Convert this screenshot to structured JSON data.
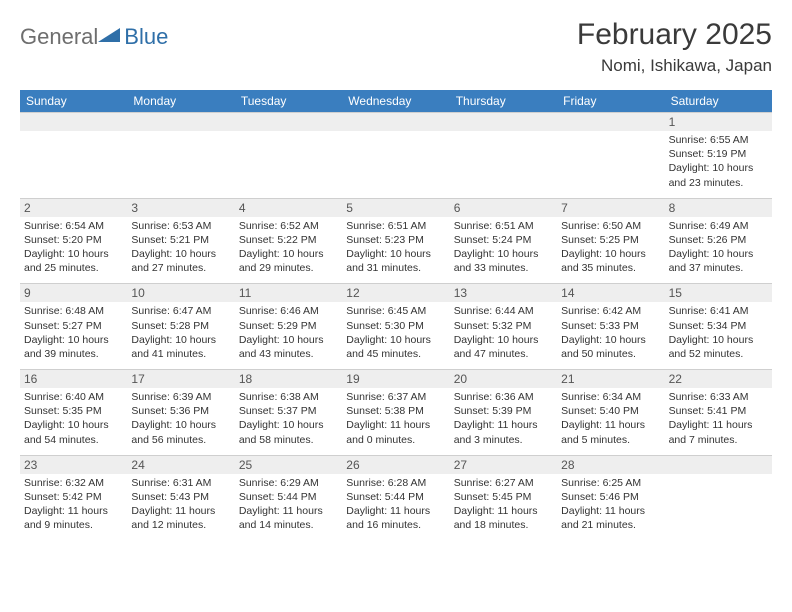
{
  "logo": {
    "text_general": "General",
    "text_blue": "Blue"
  },
  "header": {
    "month_title": "February 2025",
    "location": "Nomi, Ishikawa, Japan"
  },
  "colors": {
    "header_bg": "#3a7ebf",
    "strip_bg": "#eeeeee",
    "border": "#cfcfcf",
    "logo_gray": "#6e6e6e",
    "logo_blue": "#2f6fa8"
  },
  "weekdays": [
    "Sunday",
    "Monday",
    "Tuesday",
    "Wednesday",
    "Thursday",
    "Friday",
    "Saturday"
  ],
  "weeks": [
    [
      {
        "blank": true
      },
      {
        "blank": true
      },
      {
        "blank": true
      },
      {
        "blank": true
      },
      {
        "blank": true
      },
      {
        "blank": true
      },
      {
        "num": "1",
        "sunrise": "Sunrise: 6:55 AM",
        "sunset": "Sunset: 5:19 PM",
        "daylight": "Daylight: 10 hours and 23 minutes."
      }
    ],
    [
      {
        "num": "2",
        "sunrise": "Sunrise: 6:54 AM",
        "sunset": "Sunset: 5:20 PM",
        "daylight": "Daylight: 10 hours and 25 minutes."
      },
      {
        "num": "3",
        "sunrise": "Sunrise: 6:53 AM",
        "sunset": "Sunset: 5:21 PM",
        "daylight": "Daylight: 10 hours and 27 minutes."
      },
      {
        "num": "4",
        "sunrise": "Sunrise: 6:52 AM",
        "sunset": "Sunset: 5:22 PM",
        "daylight": "Daylight: 10 hours and 29 minutes."
      },
      {
        "num": "5",
        "sunrise": "Sunrise: 6:51 AM",
        "sunset": "Sunset: 5:23 PM",
        "daylight": "Daylight: 10 hours and 31 minutes."
      },
      {
        "num": "6",
        "sunrise": "Sunrise: 6:51 AM",
        "sunset": "Sunset: 5:24 PM",
        "daylight": "Daylight: 10 hours and 33 minutes."
      },
      {
        "num": "7",
        "sunrise": "Sunrise: 6:50 AM",
        "sunset": "Sunset: 5:25 PM",
        "daylight": "Daylight: 10 hours and 35 minutes."
      },
      {
        "num": "8",
        "sunrise": "Sunrise: 6:49 AM",
        "sunset": "Sunset: 5:26 PM",
        "daylight": "Daylight: 10 hours and 37 minutes."
      }
    ],
    [
      {
        "num": "9",
        "sunrise": "Sunrise: 6:48 AM",
        "sunset": "Sunset: 5:27 PM",
        "daylight": "Daylight: 10 hours and 39 minutes."
      },
      {
        "num": "10",
        "sunrise": "Sunrise: 6:47 AM",
        "sunset": "Sunset: 5:28 PM",
        "daylight": "Daylight: 10 hours and 41 minutes."
      },
      {
        "num": "11",
        "sunrise": "Sunrise: 6:46 AM",
        "sunset": "Sunset: 5:29 PM",
        "daylight": "Daylight: 10 hours and 43 minutes."
      },
      {
        "num": "12",
        "sunrise": "Sunrise: 6:45 AM",
        "sunset": "Sunset: 5:30 PM",
        "daylight": "Daylight: 10 hours and 45 minutes."
      },
      {
        "num": "13",
        "sunrise": "Sunrise: 6:44 AM",
        "sunset": "Sunset: 5:32 PM",
        "daylight": "Daylight: 10 hours and 47 minutes."
      },
      {
        "num": "14",
        "sunrise": "Sunrise: 6:42 AM",
        "sunset": "Sunset: 5:33 PM",
        "daylight": "Daylight: 10 hours and 50 minutes."
      },
      {
        "num": "15",
        "sunrise": "Sunrise: 6:41 AM",
        "sunset": "Sunset: 5:34 PM",
        "daylight": "Daylight: 10 hours and 52 minutes."
      }
    ],
    [
      {
        "num": "16",
        "sunrise": "Sunrise: 6:40 AM",
        "sunset": "Sunset: 5:35 PM",
        "daylight": "Daylight: 10 hours and 54 minutes."
      },
      {
        "num": "17",
        "sunrise": "Sunrise: 6:39 AM",
        "sunset": "Sunset: 5:36 PM",
        "daylight": "Daylight: 10 hours and 56 minutes."
      },
      {
        "num": "18",
        "sunrise": "Sunrise: 6:38 AM",
        "sunset": "Sunset: 5:37 PM",
        "daylight": "Daylight: 10 hours and 58 minutes."
      },
      {
        "num": "19",
        "sunrise": "Sunrise: 6:37 AM",
        "sunset": "Sunset: 5:38 PM",
        "daylight": "Daylight: 11 hours and 0 minutes."
      },
      {
        "num": "20",
        "sunrise": "Sunrise: 6:36 AM",
        "sunset": "Sunset: 5:39 PM",
        "daylight": "Daylight: 11 hours and 3 minutes."
      },
      {
        "num": "21",
        "sunrise": "Sunrise: 6:34 AM",
        "sunset": "Sunset: 5:40 PM",
        "daylight": "Daylight: 11 hours and 5 minutes."
      },
      {
        "num": "22",
        "sunrise": "Sunrise: 6:33 AM",
        "sunset": "Sunset: 5:41 PM",
        "daylight": "Daylight: 11 hours and 7 minutes."
      }
    ],
    [
      {
        "num": "23",
        "sunrise": "Sunrise: 6:32 AM",
        "sunset": "Sunset: 5:42 PM",
        "daylight": "Daylight: 11 hours and 9 minutes."
      },
      {
        "num": "24",
        "sunrise": "Sunrise: 6:31 AM",
        "sunset": "Sunset: 5:43 PM",
        "daylight": "Daylight: 11 hours and 12 minutes."
      },
      {
        "num": "25",
        "sunrise": "Sunrise: 6:29 AM",
        "sunset": "Sunset: 5:44 PM",
        "daylight": "Daylight: 11 hours and 14 minutes."
      },
      {
        "num": "26",
        "sunrise": "Sunrise: 6:28 AM",
        "sunset": "Sunset: 5:44 PM",
        "daylight": "Daylight: 11 hours and 16 minutes."
      },
      {
        "num": "27",
        "sunrise": "Sunrise: 6:27 AM",
        "sunset": "Sunset: 5:45 PM",
        "daylight": "Daylight: 11 hours and 18 minutes."
      },
      {
        "num": "28",
        "sunrise": "Sunrise: 6:25 AM",
        "sunset": "Sunset: 5:46 PM",
        "daylight": "Daylight: 11 hours and 21 minutes."
      },
      {
        "blank": true
      }
    ]
  ]
}
